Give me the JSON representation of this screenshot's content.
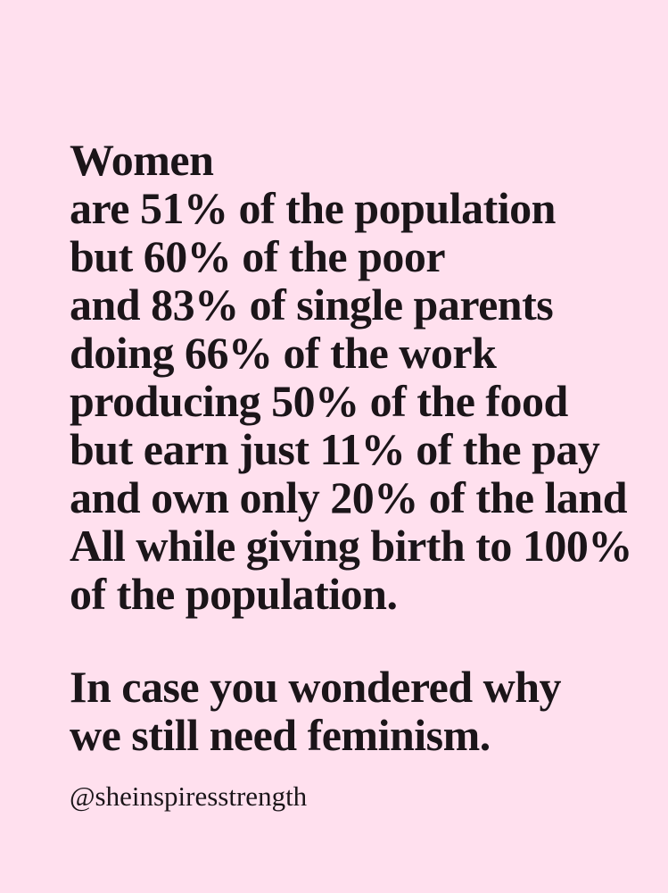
{
  "colors": {
    "background": "#ffe0ee",
    "text": "#1b1519"
  },
  "quote": {
    "lines": [
      "Women",
      "are 51% of the population",
      "but 60% of the poor",
      "and 83% of single parents",
      "doing 66% of the work",
      "producing 50% of the food",
      "but earn just 11% of the pay",
      "and own only 20% of the land",
      "All while giving birth to 100%",
      "of the population."
    ],
    "closing_lines": [
      "In case you wondered why",
      "we still need feminism."
    ],
    "attribution": "@sheinspiresstrength"
  }
}
